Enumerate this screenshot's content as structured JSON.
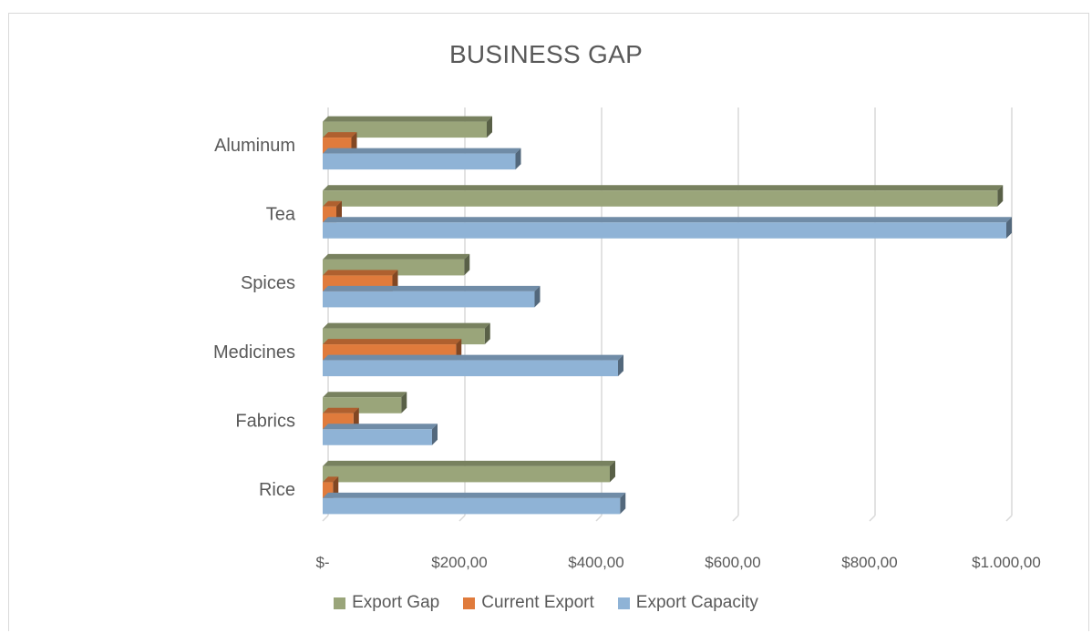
{
  "chart_data": {
    "type": "bar",
    "orientation": "horizontal",
    "title": "BUSINESS GAP",
    "categories": [
      "Rice",
      "Fabrics",
      "Medicines",
      "Spices",
      "Tea",
      "Aluminum"
    ],
    "series": [
      {
        "name": "Export Gap",
        "color": "#9aa57a",
        "values": [
          420,
          115,
          237,
          207,
          987,
          240
        ]
      },
      {
        "name": "Current Export",
        "color": "#e07b3c",
        "values": [
          15,
          45,
          195,
          102,
          20,
          42
        ]
      },
      {
        "name": "Export Capacity",
        "color": "#8fb3d6",
        "values": [
          435,
          160,
          432,
          310,
          1000,
          282
        ]
      }
    ],
    "x_ticks": [
      {
        "value": 0,
        "label": "$-"
      },
      {
        "value": 200,
        "label": "$200,00"
      },
      {
        "value": 400,
        "label": "$400,00"
      },
      {
        "value": 600,
        "label": "$600,00"
      },
      {
        "value": 800,
        "label": "$800,00"
      },
      {
        "value": 1000,
        "label": "$1.000,00"
      }
    ],
    "xlim": [
      0,
      1000
    ],
    "grid": true,
    "legend_position": "bottom",
    "xlabel": "",
    "ylabel": ""
  }
}
